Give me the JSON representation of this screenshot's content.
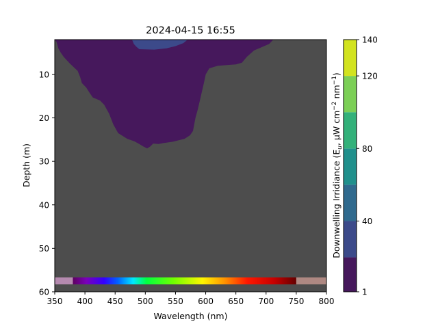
{
  "chart_data": {
    "type": "heatmap",
    "title": "2024-04-15 16:55",
    "xlabel": "Wavelength (nm)",
    "ylabel": "Depth (m)",
    "xlim": [
      350,
      800
    ],
    "ylim": [
      60,
      2
    ],
    "x_ticks": [
      350,
      400,
      450,
      500,
      550,
      600,
      650,
      700,
      750,
      800
    ],
    "y_ticks": [
      10,
      20,
      30,
      40,
      50,
      60
    ],
    "grid": false,
    "background_color": "#4d4d4d",
    "colorbar": {
      "label": "Downwelling Irridiance (E$_{u}$, $\\mu$W cm$^{-2}$ nm$^{-1}$)",
      "label_parts": {
        "prefix": "Downwelling Irridiance (E",
        "sub": "u",
        "mid": ", μW cm",
        "sup1": "−2",
        "mid2": " nm",
        "sup2": "−1",
        "suffix": ")"
      },
      "ticks": [
        1,
        40,
        80,
        120,
        140
      ],
      "levels": [
        1,
        20,
        40,
        60,
        80,
        100,
        120,
        140
      ],
      "colors": [
        "#46185c",
        "#3c4a8a",
        "#306a8e",
        "#20908c",
        "#33b17a",
        "#7ccf56",
        "#d2e31f"
      ]
    },
    "contours": [
      {
        "level_index": 0,
        "color": "#46185c",
        "boundary": [
          [
            350,
            2
          ],
          [
            712,
            2
          ],
          [
            705,
            3
          ],
          [
            680,
            4.5
          ],
          [
            668,
            6
          ],
          [
            660,
            7.3
          ],
          [
            650,
            7.7
          ],
          [
            620,
            8
          ],
          [
            606,
            8.6
          ],
          [
            600,
            10
          ],
          [
            597,
            12
          ],
          [
            592,
            15
          ],
          [
            587,
            18
          ],
          [
            583,
            20
          ],
          [
            579,
            23
          ],
          [
            574,
            24
          ],
          [
            565,
            24.8
          ],
          [
            545,
            25.5
          ],
          [
            530,
            25.8
          ],
          [
            522,
            26
          ],
          [
            513,
            25.9
          ],
          [
            508,
            26.6
          ],
          [
            503,
            27
          ],
          [
            497,
            26.6
          ],
          [
            490,
            26
          ],
          [
            482,
            25.4
          ],
          [
            470,
            24.8
          ],
          [
            455,
            23.5
          ],
          [
            447,
            21.5
          ],
          [
            440,
            19
          ],
          [
            432,
            17
          ],
          [
            425,
            16
          ],
          [
            413,
            15.3
          ],
          [
            408,
            14.3
          ],
          [
            402,
            13
          ],
          [
            395,
            12
          ],
          [
            392,
            10.6
          ],
          [
            388,
            9.2
          ],
          [
            375,
            7.5
          ],
          [
            365,
            6
          ],
          [
            360,
            5
          ],
          [
            356,
            4
          ],
          [
            353,
            2.5
          ],
          [
            350,
            2
          ]
        ]
      },
      {
        "level_index": 1,
        "color": "#3c4a8a",
        "boundary": [
          [
            478,
            2
          ],
          [
            570,
            2
          ],
          [
            563,
            2.8
          ],
          [
            550,
            3.5
          ],
          [
            535,
            4
          ],
          [
            515,
            4.3
          ],
          [
            490,
            4.2
          ],
          [
            485,
            3.6
          ],
          [
            481,
            3
          ]
        ]
      }
    ],
    "spectrum_band": {
      "depth_range": [
        56.7,
        58.3
      ],
      "uv_range": [
        350,
        380
      ],
      "visible_range": [
        380,
        750
      ],
      "ir_range": [
        750,
        800
      ],
      "uv_color": "#b58aaf",
      "ir_color": "#ae8882"
    }
  }
}
